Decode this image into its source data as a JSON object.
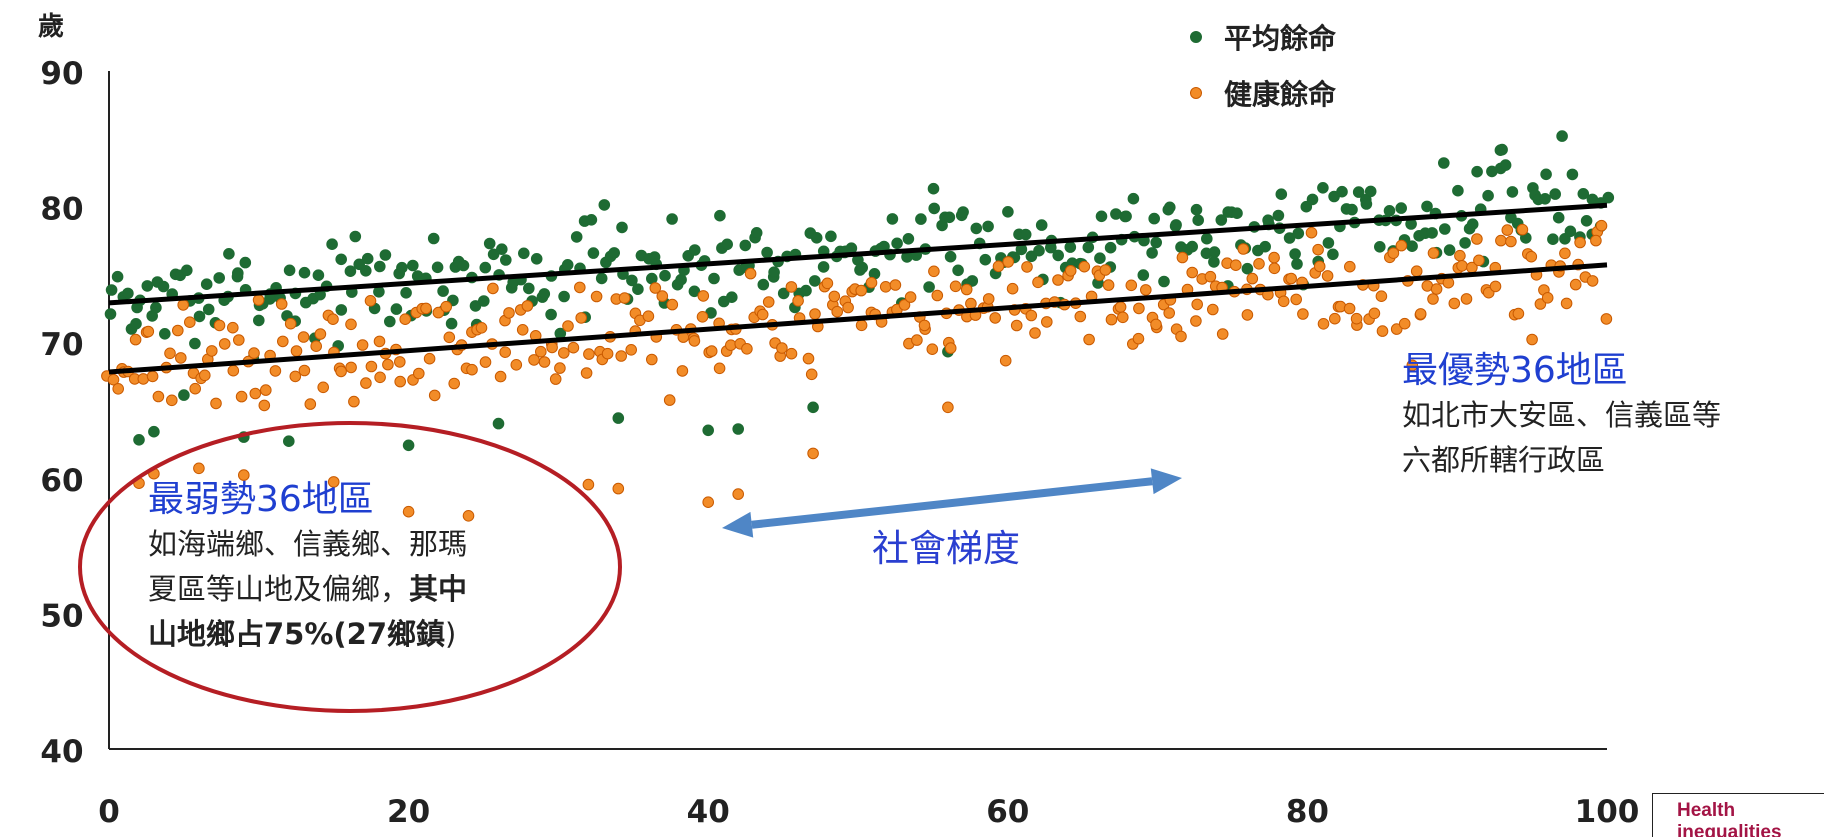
{
  "chart_data": {
    "type": "scatter",
    "ylabel": "歲",
    "xlim": [
      0,
      100
    ],
    "ylim": [
      40,
      90
    ],
    "xticks": [
      0,
      20,
      40,
      60,
      80,
      100
    ],
    "yticks": [
      40,
      50,
      60,
      70,
      80,
      90
    ],
    "legend_position": "top-right",
    "series": [
      {
        "name": "平均餘命",
        "color": "#1e6b33",
        "edge": "#1e6b33",
        "seed": 7,
        "trend": {
          "start": 72.9,
          "end": 80.1
        },
        "low_start": 60.0,
        "low_end": 84.0
      },
      {
        "name": "健康餘命",
        "color": "#f28c28",
        "edge": "#c95a00",
        "seed": 13,
        "trend": {
          "start": 67.8,
          "end": 75.7
        },
        "low_start": 55.0,
        "low_end": 80.0
      }
    ],
    "outliers": {
      "平均餘命": [
        [
          2,
          62.8
        ],
        [
          3,
          63.4
        ],
        [
          5,
          66.1
        ],
        [
          9,
          63.0
        ],
        [
          12,
          62.7
        ],
        [
          20,
          62.4
        ],
        [
          26,
          64.0
        ],
        [
          34,
          64.4
        ],
        [
          40,
          63.5
        ],
        [
          42,
          63.6
        ],
        [
          47,
          65.2
        ],
        [
          56,
          69.3
        ],
        [
          93,
          84.2
        ],
        [
          97,
          85.2
        ]
      ],
      "健康餘命": [
        [
          2,
          59.6
        ],
        [
          3,
          60.3
        ],
        [
          6,
          60.7
        ],
        [
          9,
          60.2
        ],
        [
          15,
          59.7
        ],
        [
          20,
          57.5
        ],
        [
          24,
          57.2
        ],
        [
          32,
          59.5
        ],
        [
          34,
          59.2
        ],
        [
          40,
          58.2
        ],
        [
          42,
          58.8
        ],
        [
          47,
          61.8
        ],
        [
          56,
          65.2
        ],
        [
          87,
          68.3
        ],
        [
          95,
          70.2
        ]
      ]
    }
  },
  "annotations": {
    "weak": {
      "title": "最弱勢36地區",
      "line1": "如海端鄉、信義鄉、那瑪",
      "line2_plain": "夏區等山地及偏鄉，",
      "line2_bold": "其中",
      "line3_bold": "山地鄉占75%(27鄉鎮",
      "line3_plain": ")"
    },
    "strong": {
      "title": "最優勢36地區",
      "line1": "如北市大安區、信義區等",
      "line2": "六都所轄行政區"
    },
    "gradient_label": "社會梯度"
  },
  "colors": {
    "ellipse": "#b51e24",
    "arrow": "#4f86c6",
    "annotation_title": "#1f3fd0"
  },
  "source_box": {
    "line1": "Health",
    "line2": "inequalities"
  }
}
